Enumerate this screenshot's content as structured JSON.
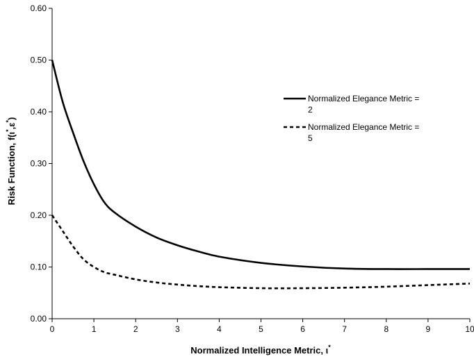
{
  "chart_data": {
    "type": "line",
    "title": "",
    "xlabel": "Normalized Intelligence Metric, ι",
    "xlabel_sup": "*",
    "ylabel": "Risk Function, f(ι",
    "ylabel_sup1": "*",
    "ylabel_mid": ",ε",
    "ylabel_sup2": "*",
    "ylabel_end": ")",
    "xlim": [
      0,
      10
    ],
    "ylim": [
      0,
      0.6
    ],
    "x_ticks": [
      "0",
      "1",
      "2",
      "3",
      "4",
      "5",
      "6",
      "7",
      "8",
      "9",
      "10"
    ],
    "y_ticks": [
      "0.00",
      "0.10",
      "0.20",
      "0.30",
      "0.40",
      "0.50",
      "0.60"
    ],
    "grid": false,
    "legend_position": "right",
    "series": [
      {
        "name": "Normalized Elegance Metric = 2",
        "legend_lines": [
          "Normalized Elegance Metric =",
          "2"
        ],
        "style": "solid",
        "color": "#000000",
        "x": [
          0,
          0.25,
          0.5,
          0.75,
          1.0,
          1.25,
          1.5,
          2.0,
          2.5,
          3.0,
          3.5,
          4.0,
          5.0,
          6.0,
          7.0,
          8.0,
          9.0,
          10.0
        ],
        "y": [
          0.5,
          0.42,
          0.36,
          0.305,
          0.26,
          0.225,
          0.205,
          0.178,
          0.157,
          0.142,
          0.13,
          0.12,
          0.108,
          0.101,
          0.097,
          0.096,
          0.096,
          0.096
        ]
      },
      {
        "name": "Normalized Elegance Metric = 5",
        "legend_lines": [
          "Normalized Elegance Metric =",
          "5"
        ],
        "style": "dashed",
        "color": "#000000",
        "x": [
          0,
          0.25,
          0.5,
          0.75,
          1.0,
          1.25,
          1.5,
          2.0,
          2.5,
          3.0,
          3.5,
          4.0,
          5.0,
          6.0,
          7.0,
          8.0,
          9.0,
          10.0
        ],
        "y": [
          0.2,
          0.17,
          0.14,
          0.115,
          0.1,
          0.09,
          0.085,
          0.076,
          0.07,
          0.066,
          0.063,
          0.061,
          0.059,
          0.059,
          0.06,
          0.062,
          0.065,
          0.068
        ]
      }
    ]
  }
}
